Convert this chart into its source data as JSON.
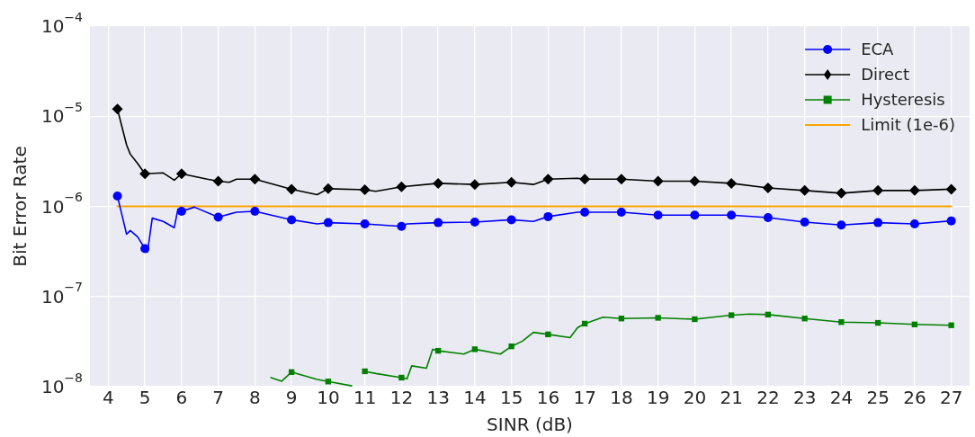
{
  "chart_data": {
    "type": "line",
    "xlabel": "SINR (dB)",
    "ylabel": "Bit Error Rate",
    "log": "y",
    "grid": true,
    "legend": "top right",
    "xlim": [
      3.5,
      27.5
    ],
    "xticks": [
      4,
      5,
      6,
      7,
      8,
      9,
      10,
      11,
      12,
      13,
      14,
      15,
      16,
      17,
      18,
      19,
      20,
      21,
      22,
      23,
      24,
      25,
      26,
      27
    ],
    "ylim": [
      1e-08,
      0.0001
    ],
    "yticks": [
      {
        "value": 1e-08,
        "label": "10$^{−8}$"
      },
      {
        "value": 1e-07,
        "label": "10$^{−7}$"
      },
      {
        "value": 1e-06,
        "label": "10$^{−6}$"
      },
      {
        "value": 1e-05,
        "label": "10$^{−5}$"
      },
      {
        "value": 0.0001,
        "label": "10$^{−4}$"
      }
    ],
    "series": [
      {
        "name": "ECA",
        "color": "#0000ff",
        "marker": "circle",
        "x": [
          4.25,
          4.5,
          4.6,
          4.8,
          5,
          5.07,
          5.2,
          5.5,
          5.8,
          5.9,
          6,
          6.35,
          7,
          7.5,
          8,
          9,
          9.7,
          10,
          11,
          12,
          12.15,
          13,
          14,
          15,
          15.6,
          16,
          16.8,
          17,
          18,
          19,
          20,
          21,
          22,
          23,
          24,
          25,
          26,
          27
        ],
        "values": [
          1.3e-06,
          4.9e-07,
          5.4e-07,
          4.6e-07,
          3.4e-07,
          3.1e-07,
          7.4e-07,
          6.8e-07,
          5.8e-07,
          9.3e-07,
          8.8e-07,
          9.8e-07,
          7.6e-07,
          8.6e-07,
          8.8e-07,
          7.1e-07,
          6.4e-07,
          6.6e-07,
          6.4e-07,
          6e-07,
          6.4e-07,
          6.6e-07,
          6.7e-07,
          7.1e-07,
          6.8e-07,
          7.7e-07,
          8.6e-07,
          8.6e-07,
          8.6e-07,
          8e-07,
          8e-07,
          8e-07,
          7.5e-07,
          6.7e-07,
          6.2e-07,
          6.6e-07,
          6.4e-07,
          6.9e-07
        ]
      },
      {
        "name": "Direct",
        "color": "#000000",
        "marker": "diamond",
        "x": [
          4.25,
          4.5,
          4.6,
          4.8,
          5,
          5.5,
          5.8,
          6,
          6.7,
          7,
          7.3,
          7.5,
          8,
          9,
          9.7,
          10,
          11,
          11.3,
          12,
          13,
          14,
          15,
          15.6,
          16,
          16.8,
          17,
          18,
          19,
          20,
          21,
          22,
          23,
          24,
          25,
          26,
          27
        ],
        "values": [
          1.2e-05,
          4.8e-06,
          3.8e-06,
          3e-06,
          2.3e-06,
          2.35e-06,
          1.95e-06,
          2.3e-06,
          2e-06,
          1.9e-06,
          1.85e-06,
          2e-06,
          2e-06,
          1.55e-06,
          1.35e-06,
          1.57e-06,
          1.53e-06,
          1.47e-06,
          1.65e-06,
          1.8e-06,
          1.75e-06,
          1.85e-06,
          1.75e-06,
          2e-06,
          2.05e-06,
          2e-06,
          2e-06,
          1.9e-06,
          1.9e-06,
          1.8e-06,
          1.6e-06,
          1.5e-06,
          1.4e-06,
          1.5e-06,
          1.5e-06,
          1.55e-06
        ]
      },
      {
        "name": "Hysteresis",
        "color": "#008000",
        "marker": "square",
        "x": [
          8.44,
          8.73,
          9,
          9.7,
          10,
          10.64,
          10.8,
          11,
          11.3,
          12,
          12.15,
          12.28,
          12.68,
          12.85,
          13,
          13.7,
          14,
          14.7,
          15,
          15.3,
          15.6,
          16,
          16.6,
          16.8,
          17,
          17.5,
          18,
          19,
          20,
          21,
          21.5,
          22,
          23,
          24,
          25,
          26,
          27
        ],
        "values": [
          1.26e-08,
          1.15e-08,
          1.45e-08,
          1.2e-08,
          1.14e-08,
          1.02e-08,
          null,
          1.48e-08,
          1.4e-08,
          1.26e-08,
          1.22e-08,
          1.7e-08,
          1.6e-08,
          2.6e-08,
          2.5e-08,
          2.3e-08,
          2.6e-08,
          2.3e-08,
          2.8e-08,
          3.2e-08,
          4e-08,
          3.8e-08,
          3.5e-08,
          4.5e-08,
          5e-08,
          5.9e-08,
          5.7e-08,
          5.8e-08,
          5.6e-08,
          6.2e-08,
          6.4e-08,
          6.3e-08,
          5.7e-08,
          5.2e-08,
          5.1e-08,
          4.9e-08,
          4.8e-08
        ]
      },
      {
        "name": "Limit (1e-6)",
        "color": "#ffa500",
        "marker": "none",
        "x": [
          4.25,
          27
        ],
        "values": [
          1e-06,
          1e-06
        ]
      }
    ]
  }
}
